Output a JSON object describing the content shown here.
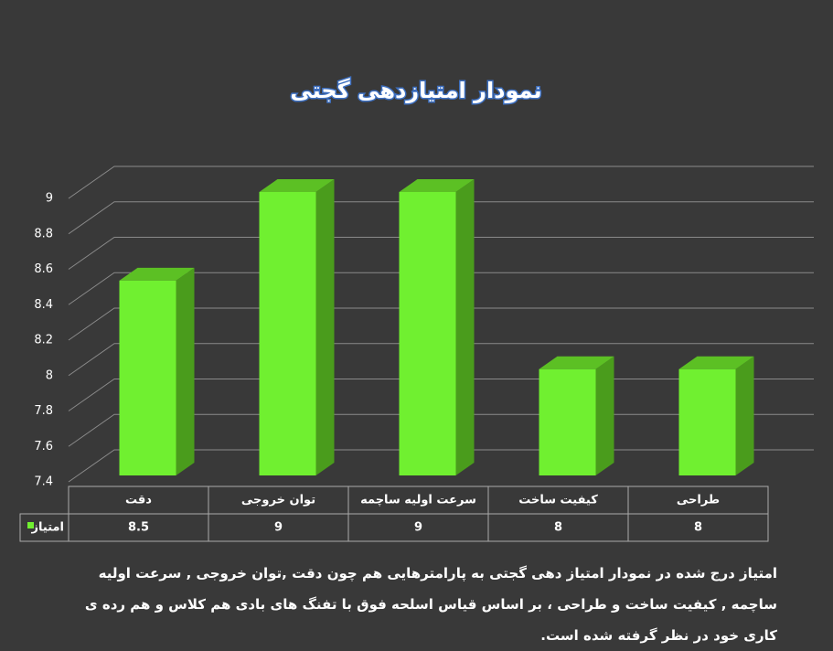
{
  "chart_data": {
    "type": "bar3d",
    "title": "نمودار امتیازدهی گجتی",
    "categories": [
      "دقت",
      "توان خروجی",
      "سرعت اولیه ساچمه",
      "کیفیت ساخت",
      "طراحی"
    ],
    "series": [
      {
        "name": "امتیاز",
        "color": "#70f030",
        "values": [
          8.5,
          9,
          9,
          8,
          8
        ]
      }
    ],
    "ylim": [
      7.4,
      9
    ],
    "yticks": [
      7.4,
      7.6,
      7.8,
      8,
      8.2,
      8.4,
      8.6,
      8.8,
      9
    ],
    "grid": true,
    "caption": "امتیاز درج شده در نمودار امتیاز دهی گجتی  به پارامترهایی هم چون دقت ,توان خروجی , سرعت اولیه ساچمه , کیفیت ساخت و طراحی ، بر اساس قیاس اسلحه فوق با تفنگ های بادی هم کلاس و هم رده ی کاری خود در نظر گرفته شده است."
  }
}
